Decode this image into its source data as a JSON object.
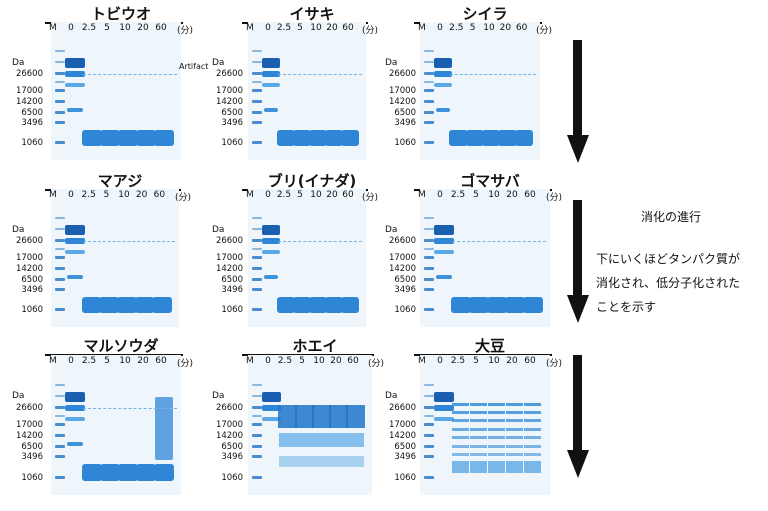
{
  "common": {
    "marker_label": "M",
    "unit_label": "(分)",
    "da_label": "Da",
    "lanes": [
      "0",
      "2.5",
      "5",
      "10",
      "20",
      "60"
    ],
    "mw_markers": [
      "26600",
      "17000",
      "14200",
      "6500",
      "3496",
      "1060"
    ]
  },
  "panels": [
    {
      "title": "トビウオ"
    },
    {
      "title": "イサキ"
    },
    {
      "title": "シイラ"
    },
    {
      "title": "マアジ"
    },
    {
      "title": "ブリ(イナダ)"
    },
    {
      "title": "ゴマサバ"
    },
    {
      "title": "マルソウダ"
    },
    {
      "title": "ホエイ"
    },
    {
      "title": "大豆"
    }
  ],
  "artifact_label": "Artifact",
  "side_note": {
    "heading": "消化の進行",
    "lines": [
      "下にいくほどタンパク質が",
      "消化され、低分子化された",
      "ことを示す"
    ]
  },
  "colors": {
    "band": "#2f86d6",
    "band_dark": "#1a5fb0",
    "gel_bg": "#eef6fb",
    "arrow": "#111111"
  }
}
